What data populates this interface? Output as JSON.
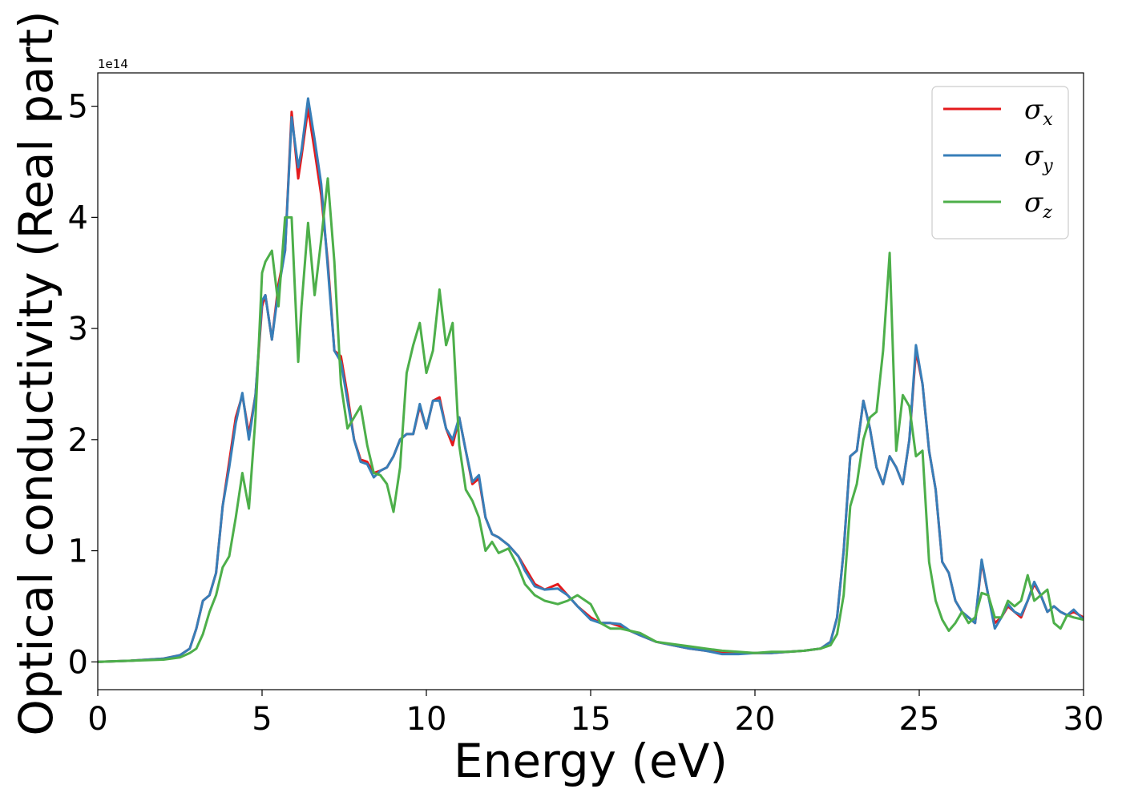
{
  "chart_data": {
    "type": "line",
    "title": "",
    "xlabel": "Energy (eV)",
    "ylabel": "Optical conductivity (Real part)",
    "y_offset_label": "1e14",
    "xlim": [
      0,
      30
    ],
    "ylim": [
      -0.25,
      5.3
    ],
    "xticks": [
      0,
      5,
      10,
      15,
      20,
      25,
      30
    ],
    "yticks": [
      0,
      1,
      2,
      3,
      4,
      5
    ],
    "grid": false,
    "legend_position": "top-right",
    "series": [
      {
        "name": "σx",
        "symbol": "σ",
        "subscript": "x",
        "color": "#e41a1c",
        "x": [
          0,
          1,
          2,
          2.5,
          2.8,
          3,
          3.2,
          3.4,
          3.6,
          3.8,
          4,
          4.2,
          4.4,
          4.6,
          4.8,
          5,
          5.1,
          5.3,
          5.5,
          5.7,
          5.9,
          6.1,
          6.2,
          6.4,
          6.6,
          6.8,
          7,
          7.2,
          7.4,
          7.6,
          7.8,
          8,
          8.2,
          8.4,
          8.6,
          8.8,
          9,
          9.2,
          9.4,
          9.6,
          9.8,
          10,
          10.2,
          10.4,
          10.6,
          10.8,
          11,
          11.2,
          11.4,
          11.6,
          11.8,
          12,
          12.2,
          12.5,
          12.8,
          13,
          13.3,
          13.6,
          14,
          14.3,
          14.6,
          15,
          15.3,
          15.6,
          15.9,
          16.2,
          16.5,
          17,
          17.5,
          18,
          18.5,
          19,
          19.5,
          20,
          20.5,
          21,
          21.5,
          22,
          22.3,
          22.5,
          22.7,
          22.9,
          23.1,
          23.3,
          23.5,
          23.7,
          23.9,
          24.1,
          24.3,
          24.5,
          24.7,
          24.9,
          25.1,
          25.3,
          25.5,
          25.7,
          25.9,
          26.1,
          26.3,
          26.5,
          26.7,
          26.9,
          27.1,
          27.3,
          27.5,
          27.7,
          27.9,
          28.1,
          28.3,
          28.5,
          28.7,
          28.9,
          29.1,
          29.3,
          29.5,
          29.7,
          30
        ],
        "values": [
          0,
          0.01,
          0.03,
          0.06,
          0.12,
          0.3,
          0.55,
          0.6,
          0.8,
          1.4,
          1.8,
          2.2,
          2.4,
          2.05,
          2.4,
          3.2,
          3.3,
          2.9,
          3.4,
          3.7,
          4.95,
          4.35,
          4.55,
          4.98,
          4.6,
          4.2,
          3.6,
          2.8,
          2.75,
          2.4,
          2.0,
          1.82,
          1.8,
          1.7,
          1.72,
          1.75,
          1.85,
          2.0,
          2.05,
          2.05,
          2.3,
          2.1,
          2.35,
          2.38,
          2.1,
          1.95,
          2.2,
          1.9,
          1.6,
          1.65,
          1.3,
          1.15,
          1.12,
          1.05,
          0.95,
          0.85,
          0.7,
          0.65,
          0.7,
          0.6,
          0.5,
          0.4,
          0.35,
          0.35,
          0.32,
          0.28,
          0.24,
          0.18,
          0.15,
          0.12,
          0.1,
          0.08,
          0.08,
          0.08,
          0.08,
          0.09,
          0.1,
          0.12,
          0.18,
          0.4,
          1.0,
          1.85,
          1.9,
          2.35,
          2.1,
          1.75,
          1.6,
          1.85,
          1.75,
          1.6,
          2.0,
          2.8,
          2.5,
          1.9,
          1.55,
          0.9,
          0.8,
          0.55,
          0.45,
          0.4,
          0.35,
          0.9,
          0.6,
          0.35,
          0.4,
          0.5,
          0.45,
          0.4,
          0.55,
          0.7,
          0.6,
          0.45,
          0.5,
          0.45,
          0.42,
          0.45,
          0.4
        ],
        "linewidth": 3
      },
      {
        "name": "σy",
        "symbol": "σ",
        "subscript": "y",
        "color": "#377eb8",
        "x": [
          0,
          1,
          2,
          2.5,
          2.8,
          3,
          3.2,
          3.4,
          3.6,
          3.8,
          4,
          4.2,
          4.4,
          4.6,
          4.8,
          5,
          5.1,
          5.3,
          5.5,
          5.7,
          5.9,
          6.1,
          6.2,
          6.4,
          6.6,
          6.8,
          7,
          7.2,
          7.4,
          7.6,
          7.8,
          8,
          8.2,
          8.4,
          8.6,
          8.8,
          9,
          9.2,
          9.4,
          9.6,
          9.8,
          10,
          10.2,
          10.4,
          10.6,
          10.8,
          11,
          11.2,
          11.4,
          11.6,
          11.8,
          12,
          12.2,
          12.5,
          12.8,
          13,
          13.3,
          13.6,
          14,
          14.3,
          14.6,
          15,
          15.3,
          15.6,
          15.9,
          16.2,
          16.5,
          17,
          17.5,
          18,
          18.5,
          19,
          19.5,
          20,
          20.5,
          21,
          21.5,
          22,
          22.3,
          22.5,
          22.7,
          22.9,
          23.1,
          23.3,
          23.5,
          23.7,
          23.9,
          24.1,
          24.3,
          24.5,
          24.7,
          24.9,
          25.1,
          25.3,
          25.5,
          25.7,
          25.9,
          26.1,
          26.3,
          26.5,
          26.7,
          26.9,
          27.1,
          27.3,
          27.5,
          27.7,
          27.9,
          28.1,
          28.3,
          28.5,
          28.7,
          28.9,
          29.1,
          29.3,
          29.5,
          29.7,
          30
        ],
        "values": [
          0,
          0.01,
          0.03,
          0.06,
          0.12,
          0.3,
          0.55,
          0.6,
          0.8,
          1.4,
          1.75,
          2.15,
          2.42,
          2.0,
          2.4,
          3.25,
          3.3,
          2.9,
          3.35,
          3.7,
          4.9,
          4.45,
          4.6,
          5.07,
          4.7,
          4.3,
          3.55,
          2.8,
          2.7,
          2.35,
          2.0,
          1.8,
          1.78,
          1.66,
          1.72,
          1.75,
          1.85,
          2.0,
          2.05,
          2.05,
          2.32,
          2.1,
          2.35,
          2.35,
          2.1,
          2.0,
          2.2,
          1.9,
          1.62,
          1.68,
          1.3,
          1.15,
          1.12,
          1.05,
          0.95,
          0.82,
          0.68,
          0.65,
          0.66,
          0.6,
          0.5,
          0.38,
          0.35,
          0.35,
          0.34,
          0.28,
          0.24,
          0.18,
          0.15,
          0.12,
          0.1,
          0.07,
          0.07,
          0.08,
          0.08,
          0.09,
          0.1,
          0.12,
          0.18,
          0.4,
          1.0,
          1.85,
          1.9,
          2.35,
          2.1,
          1.75,
          1.6,
          1.85,
          1.75,
          1.6,
          2.0,
          2.85,
          2.5,
          1.9,
          1.55,
          0.9,
          0.8,
          0.55,
          0.45,
          0.4,
          0.35,
          0.92,
          0.6,
          0.3,
          0.4,
          0.52,
          0.45,
          0.42,
          0.55,
          0.72,
          0.6,
          0.45,
          0.5,
          0.45,
          0.42,
          0.47,
          0.38
        ],
        "linewidth": 3
      },
      {
        "name": "σz",
        "symbol": "σ",
        "subscript": "z",
        "color": "#4daf4a",
        "x": [
          0,
          1,
          2,
          2.5,
          2.8,
          3,
          3.2,
          3.4,
          3.6,
          3.8,
          4,
          4.2,
          4.4,
          4.6,
          4.8,
          5,
          5.1,
          5.3,
          5.5,
          5.7,
          5.9,
          6.1,
          6.2,
          6.4,
          6.6,
          6.8,
          7,
          7.2,
          7.4,
          7.6,
          7.8,
          8,
          8.2,
          8.4,
          8.6,
          8.8,
          9,
          9.2,
          9.4,
          9.6,
          9.8,
          10,
          10.2,
          10.4,
          10.6,
          10.8,
          11,
          11.2,
          11.4,
          11.6,
          11.8,
          12,
          12.2,
          12.5,
          12.8,
          13,
          13.3,
          13.6,
          14,
          14.3,
          14.6,
          15,
          15.3,
          15.6,
          15.9,
          16.2,
          16.5,
          17,
          17.5,
          18,
          18.5,
          19,
          19.5,
          20,
          20.5,
          21,
          21.5,
          22,
          22.3,
          22.5,
          22.7,
          22.9,
          23.1,
          23.3,
          23.5,
          23.7,
          23.9,
          24.1,
          24.3,
          24.5,
          24.7,
          24.9,
          25.1,
          25.3,
          25.5,
          25.7,
          25.9,
          26.1,
          26.3,
          26.5,
          26.7,
          26.9,
          27.1,
          27.3,
          27.5,
          27.7,
          27.9,
          28.1,
          28.3,
          28.5,
          28.7,
          28.9,
          29.1,
          29.3,
          29.5,
          29.7,
          30
        ],
        "values": [
          0,
          0.01,
          0.02,
          0.04,
          0.08,
          0.12,
          0.25,
          0.45,
          0.6,
          0.85,
          0.95,
          1.3,
          1.7,
          1.38,
          2.2,
          3.5,
          3.6,
          3.7,
          3.2,
          4.0,
          4.0,
          2.7,
          3.2,
          3.95,
          3.3,
          3.8,
          4.35,
          3.6,
          2.5,
          2.1,
          2.2,
          2.3,
          1.95,
          1.7,
          1.68,
          1.6,
          1.35,
          1.75,
          2.6,
          2.85,
          3.05,
          2.6,
          2.8,
          3.35,
          2.85,
          3.05,
          1.95,
          1.55,
          1.45,
          1.3,
          1.0,
          1.08,
          0.98,
          1.02,
          0.85,
          0.7,
          0.6,
          0.55,
          0.52,
          0.55,
          0.6,
          0.52,
          0.35,
          0.3,
          0.3,
          0.28,
          0.26,
          0.18,
          0.16,
          0.14,
          0.12,
          0.1,
          0.09,
          0.08,
          0.09,
          0.09,
          0.1,
          0.12,
          0.15,
          0.25,
          0.6,
          1.4,
          1.6,
          2.0,
          2.2,
          2.25,
          2.8,
          3.68,
          1.9,
          2.4,
          2.3,
          1.85,
          1.9,
          0.9,
          0.55,
          0.38,
          0.28,
          0.35,
          0.45,
          0.35,
          0.4,
          0.62,
          0.6,
          0.4,
          0.4,
          0.55,
          0.5,
          0.55,
          0.78,
          0.55,
          0.6,
          0.65,
          0.35,
          0.3,
          0.42,
          0.4,
          0.38
        ],
        "linewidth": 3
      }
    ]
  }
}
